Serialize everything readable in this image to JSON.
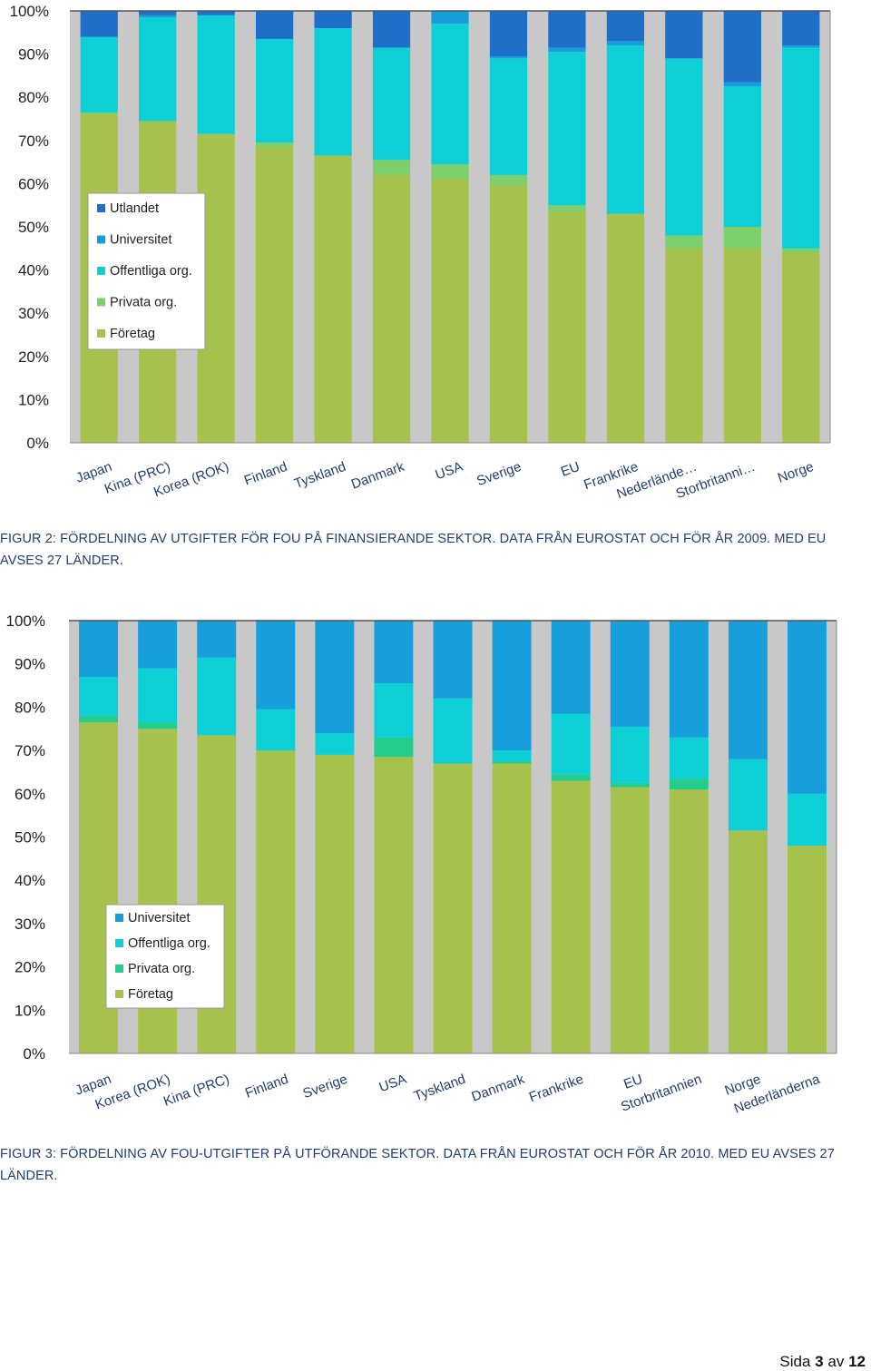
{
  "colors": {
    "Utlandet": "#1f6fca",
    "Universitet": "#179fdb",
    "Offentliga org.": "#0dd0d7",
    "Privata org.": "#7ccf6a",
    "Privata org. (fig3)": "#24cc8e",
    "Företag": "#a7c24c",
    "gap": "#c8c8c8"
  },
  "chart_data": [
    {
      "type": "bar",
      "stacked": true,
      "percent": true,
      "categories": [
        "Japan",
        "Kina (PRC)",
        "Korea (ROK)",
        "Finland",
        "Tyskland",
        "Danmark",
        "USA",
        "Sverige",
        "EU",
        "Frankrike",
        "Nederlände…",
        "Storbritanni…",
        "Norge"
      ],
      "series": [
        {
          "name": "Företag",
          "values": [
            76,
            74.5,
            71.5,
            68.5,
            66.5,
            62,
            61,
            59.5,
            53.5,
            53,
            45,
            45,
            44
          ]
        },
        {
          "name": "Privata org.",
          "values": [
            0.5,
            0,
            0,
            1,
            0,
            3.5,
            3.5,
            2.5,
            1.5,
            0,
            3,
            5,
            1
          ]
        },
        {
          "name": "Offentliga org.",
          "values": [
            17.5,
            24,
            27.5,
            24,
            29.5,
            26,
            32.5,
            27,
            35.5,
            39,
            41,
            32.5,
            46.5
          ]
        },
        {
          "name": "Universitet",
          "values": [
            0,
            0.5,
            0,
            0,
            0,
            0,
            3,
            0.5,
            1,
            1,
            0,
            1,
            0.5
          ]
        },
        {
          "name": "Utlandet",
          "values": [
            6,
            1,
            1,
            6.5,
            4,
            8.5,
            0,
            10.5,
            8.5,
            7,
            11,
            16.5,
            8
          ]
        }
      ],
      "legend": [
        "Utlandet",
        "Universitet",
        "Offentliga org.",
        "Privata org.",
        "Företag"
      ],
      "legend_position": "center-left",
      "yticks": [
        "0%",
        "10%",
        "20%",
        "30%",
        "40%",
        "50%",
        "60%",
        "70%",
        "80%",
        "90%",
        "100%"
      ],
      "ylim": [
        0,
        100
      ]
    },
    {
      "type": "bar",
      "stacked": true,
      "percent": true,
      "categories": [
        "Japan",
        "Korea (ROK)",
        "Kina (PRC)",
        "Finland",
        "Sverige",
        "USA",
        "Tyskland",
        "Danmark",
        "Frankrike",
        "EU",
        "Storbritannien",
        "Norge",
        "Nederländerna"
      ],
      "series": [
        {
          "name": "Företag",
          "values": [
            76.5,
            75,
            73.5,
            70,
            69,
            68.5,
            67,
            67,
            63,
            61.5,
            61,
            51.5,
            48
          ]
        },
        {
          "name": "Privata org.",
          "values": [
            1.5,
            1.5,
            0,
            0,
            0,
            4.5,
            0,
            0.5,
            1.5,
            1,
            2.5,
            0,
            0
          ]
        },
        {
          "name": "Offentliga org.",
          "values": [
            9,
            12.5,
            18,
            9.5,
            5,
            12.5,
            15,
            2.5,
            14,
            13,
            9.5,
            16.5,
            12
          ]
        },
        {
          "name": "Universitet",
          "values": [
            13,
            11,
            8.5,
            20.5,
            26,
            14.5,
            18,
            30,
            21.5,
            24.5,
            27,
            32,
            40
          ]
        }
      ],
      "legend": [
        "Universitet",
        "Offentliga org.",
        "Privata org.",
        "Företag"
      ],
      "legend_position": "lower-left",
      "yticks": [
        "0%",
        "10%",
        "20%",
        "30%",
        "40%",
        "50%",
        "60%",
        "70%",
        "80%",
        "90%",
        "100%"
      ],
      "ylim": [
        0,
        100
      ]
    }
  ],
  "captions": {
    "fig2": "FIGUR 2: FÖRDELNING AV UTGIFTER FÖR FOU PÅ FINANSIERANDE SEKTOR. DATA FRÅN EUROSTAT OCH FÖR ÅR 2009. MED EU AVSES 27 LÄNDER.",
    "fig3": "FIGUR 3: FÖRDELNING AV FOU-UTGIFTER PÅ UTFÖRANDE SEKTOR. DATA FRÅN EUROSTAT OCH FÖR ÅR 2010. MED EU AVSES 27 LÄNDER."
  },
  "footer": {
    "prefix": "Sida",
    "page": "3",
    "middle": "av",
    "total": "12"
  }
}
